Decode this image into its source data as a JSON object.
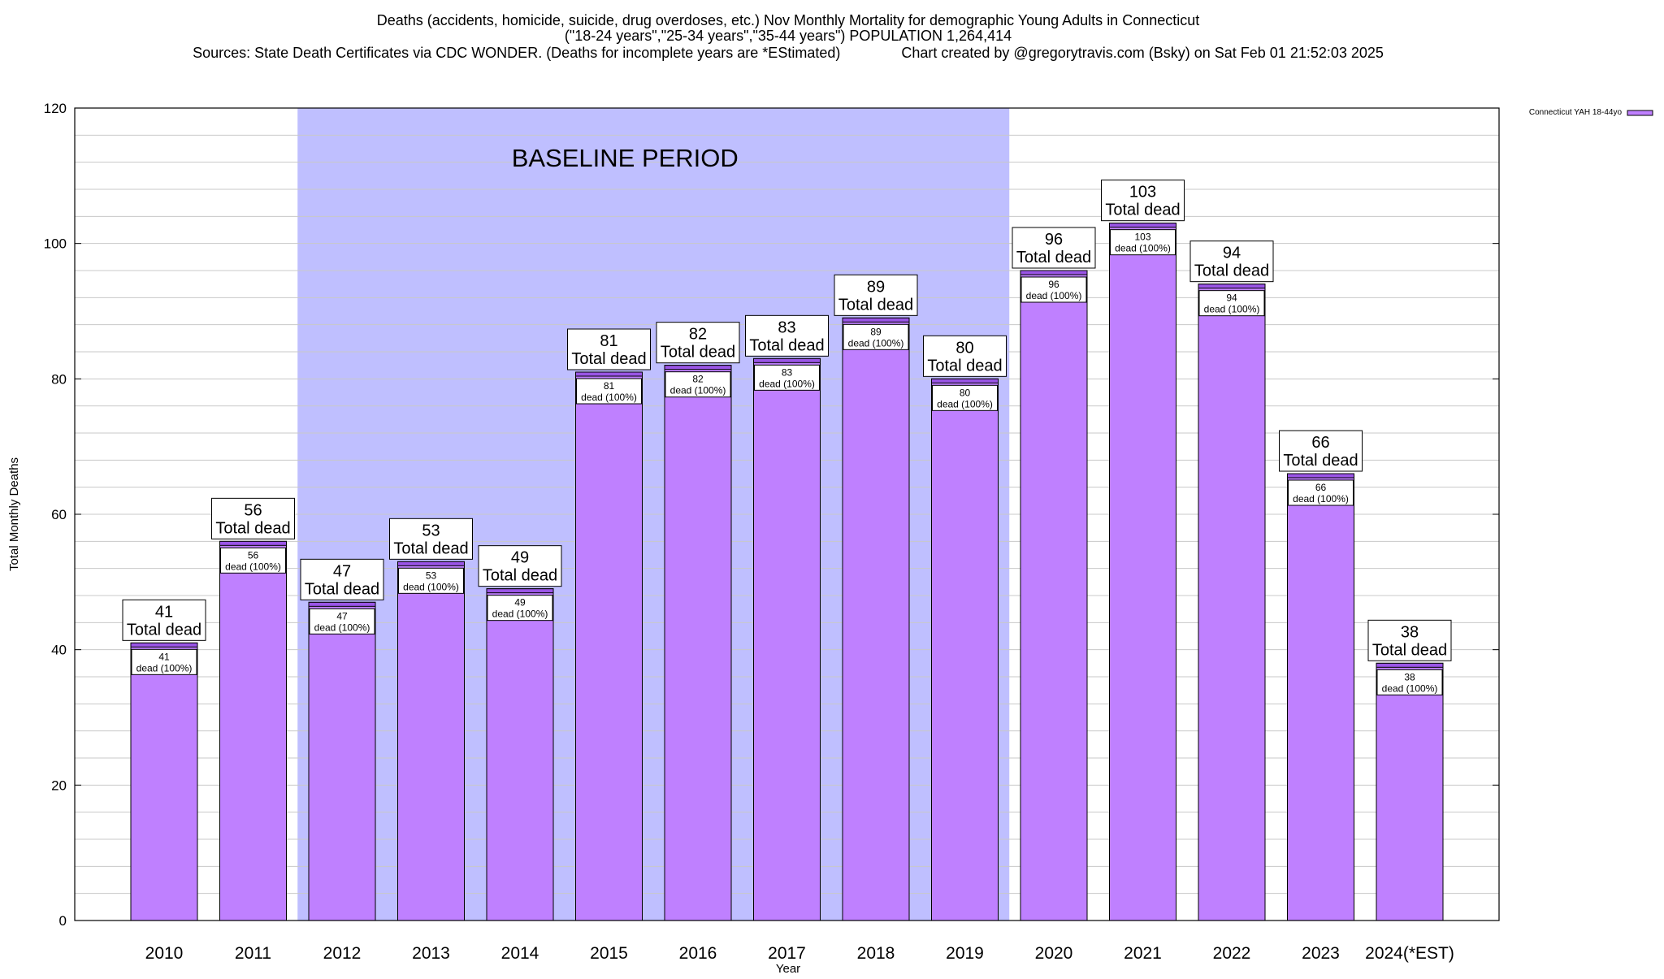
{
  "chart_data": {
    "type": "bar",
    "title_lines": [
      "Deaths (accidents, homicide, suicide, drug overdoses, etc.) Nov Monthly Mortality for demographic Young Adults in Connecticut",
      "(\"18-24 years\",\"25-34 years\",\"35-44 years\") POPULATION 1,264,414",
      "Sources: State Death Certificates via CDC WONDER. (Deaths for incomplete years are *EStimated)               Chart created by @gregorytravis.com (Bsky) on Sat Feb 01 21:52:03 2025"
    ],
    "xlabel": "Year",
    "ylabel": "Total Monthly Deaths",
    "ylim": [
      0,
      120
    ],
    "y_major_ticks": [
      0,
      20,
      40,
      60,
      80,
      100,
      120
    ],
    "y_minor_step": 4,
    "grid": true,
    "legend": {
      "position": "top-right",
      "label": "Connecticut YAH 18-44yo"
    },
    "bar_color": "#bf80ff",
    "bar_cap_color": "#9a55e6",
    "shaded_region": {
      "label": "BASELINE PERIOD",
      "from": "2012",
      "to": "2019",
      "color": "#bfbfff"
    },
    "categories": [
      "2010",
      "2011",
      "2012",
      "2013",
      "2014",
      "2015",
      "2016",
      "2017",
      "2018",
      "2019",
      "2020",
      "2021",
      "2022",
      "2023",
      "2024(*EST)"
    ],
    "series": [
      {
        "name": "Connecticut YAH 18-44yo",
        "values": [
          41,
          56,
          47,
          53,
          49,
          81,
          82,
          83,
          89,
          80,
          96,
          103,
          94,
          66,
          38
        ]
      }
    ],
    "top_label_suffix": "Total dead",
    "inner_label_suffix": "dead (100%)"
  }
}
